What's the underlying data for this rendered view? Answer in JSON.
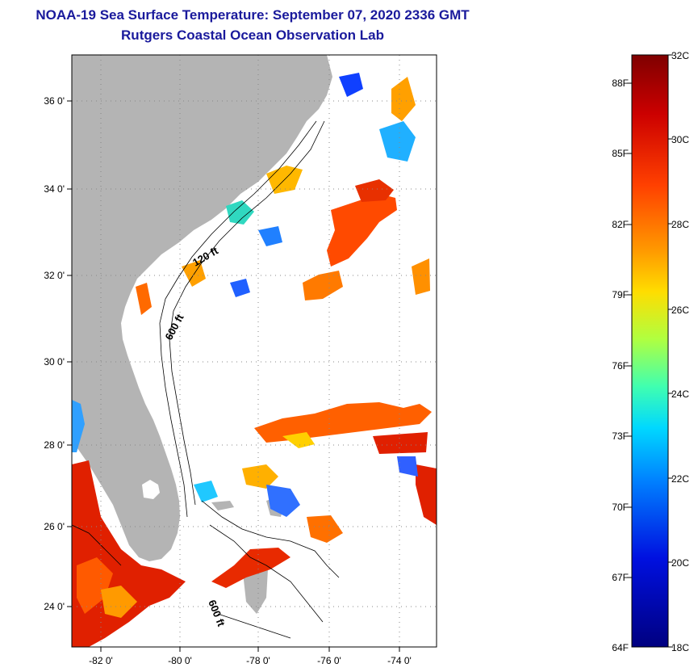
{
  "title": {
    "line1": "NOAA-19 Sea Surface Temperature:  September 07, 2020 2336 GMT",
    "line2": "Rutgers Coastal Ocean Observation Lab"
  },
  "map": {
    "lat_labels": [
      "36 0'",
      "34 0'",
      "32 0'",
      "30 0'",
      "28 0'",
      "26 0'",
      "24 0'"
    ],
    "lon_labels": [
      "-82 0'",
      "-80 0'",
      "-78 0'",
      "-76 0'",
      "-74 0'"
    ],
    "isobath_labels": [
      "120 ft",
      "600 ft",
      "600 ft"
    ],
    "colors": {
      "land": "#b4b4b4",
      "frame": "#000000",
      "grid": "#888888"
    }
  },
  "colorbar": {
    "celsius_labels": [
      "32C",
      "30C",
      "28C",
      "26C",
      "24C",
      "22C",
      "20C",
      "18C"
    ],
    "fahrenheit_labels": [
      "88F",
      "85F",
      "82F",
      "79F",
      "76F",
      "73F",
      "70F",
      "67F",
      "64F"
    ],
    "colors": [
      "#7f0000",
      "#e81a00",
      "#ff6a00",
      "#ffd000",
      "#9fff5f",
      "#20ffd8",
      "#0090ff",
      "#0010d0",
      "#00008f"
    ]
  }
}
